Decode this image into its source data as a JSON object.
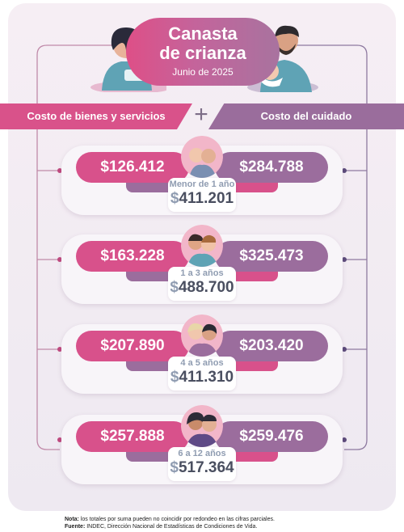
{
  "header": {
    "title_line1": "Canasta",
    "title_line2": "de crianza",
    "subtitle": "Junio de 2025"
  },
  "columns": {
    "left": "Costo de bienes y servicios",
    "plus": "+",
    "right": "Costo del cuidado"
  },
  "groups": [
    {
      "goods": "$126.412",
      "care": "$284.788",
      "age": "Menor de 1 año",
      "currency": "$",
      "total": "411.201"
    },
    {
      "goods": "$163.228",
      "care": "$325.473",
      "age": "1 a 3 años",
      "currency": "$",
      "total": "488.700"
    },
    {
      "goods": "$207.890",
      "care": "$203.420",
      "age": "4 a 5 años",
      "currency": "$",
      "total": "411.310"
    },
    {
      "goods": "$257.888",
      "care": "$259.476",
      "age": "6 a 12 años",
      "currency": "$",
      "total": "517.364"
    }
  ],
  "footer": {
    "note_label": "Nota:",
    "note_text": " los totales por suma pueden no coincidir por redondeo en las cifras parciales.",
    "source_label": "Fuente:",
    "source_text": " INDEC, Dirección Nacional de Estadísticas de Condiciones de Vida."
  },
  "colors": {
    "pink": "#d8518b",
    "purple": "#9b6d9d",
    "panel": "#f3edf3"
  }
}
